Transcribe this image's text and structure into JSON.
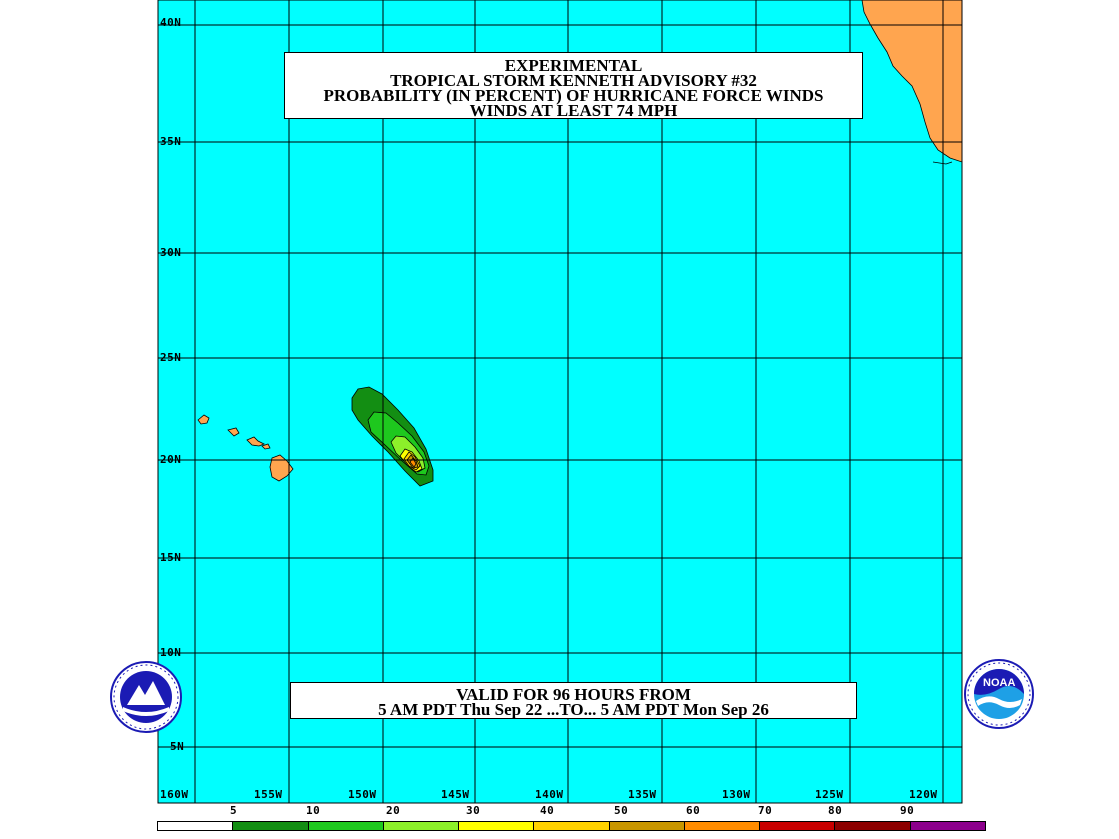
{
  "title": {
    "line1": "EXPERIMENTAL",
    "line2": "TROPICAL STORM KENNETH ADVISORY #32",
    "line3": "PROBABILITY (IN PERCENT) OF HURRICANE FORCE WINDS",
    "line4": "WINDS AT LEAST 74 MPH"
  },
  "valid": {
    "line1": "VALID FOR 96 HOURS FROM",
    "line2": "5 AM PDT Thu Sep 22 ...TO... 5 AM PDT Mon Sep 26"
  },
  "latitude_labels": [
    "40N",
    "35N",
    "30N",
    "25N",
    "20N",
    "15N",
    "10N",
    "5N"
  ],
  "longitude_labels": [
    "160W",
    "155W",
    "150W",
    "145W",
    "140W",
    "135W",
    "130W",
    "125W",
    "120W"
  ],
  "legend": {
    "labels": [
      "5",
      "10",
      "20",
      "30",
      "40",
      "50",
      "60",
      "70",
      "80",
      "90"
    ],
    "colors": [
      "#ffffff",
      "#138e13",
      "#1ec81e",
      "#8cf02a",
      "#ffff00",
      "#ffd200",
      "#c89600",
      "#ff8c00",
      "#c80000",
      "#8c0000",
      "#8c008c"
    ]
  },
  "colors": {
    "ocean": "#00ffff",
    "land": "#ffa54f",
    "grid": "#000000"
  },
  "icons": {
    "left_logo": "nws-logo-icon",
    "right_logo": "noaa-logo-icon"
  }
}
